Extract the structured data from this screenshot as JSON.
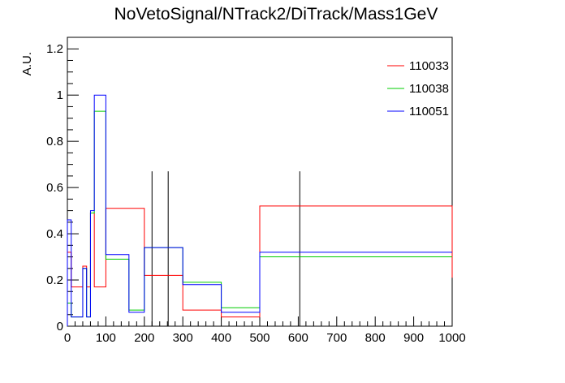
{
  "chart_data": {
    "type": "line",
    "title": "NoVetoSignal/NTrack2/DiTrack/Mass1GeV",
    "xlabel": "",
    "ylabel": "A.U.",
    "xlim": [
      0,
      1000
    ],
    "ylim": [
      0,
      1.25
    ],
    "xticks": [
      0,
      100,
      200,
      300,
      400,
      500,
      600,
      700,
      800,
      900,
      1000
    ],
    "yticks": [
      0,
      0.2,
      0.4,
      0.6,
      0.8,
      1,
      1.2
    ],
    "xtick_labels": [
      "0",
      "100",
      "200",
      "300",
      "400",
      "500",
      "600",
      "700",
      "800",
      "900",
      "1000"
    ],
    "ytick_labels": [
      "0",
      "0.2",
      "0.4",
      "0.6",
      "0.8",
      "1",
      "1.2"
    ],
    "grid": false,
    "legend_position": "top-right",
    "series": [
      {
        "name": "110033",
        "color": "#ff0000",
        "edges": [
          0,
          10,
          20,
          30,
          40,
          50,
          60,
          70,
          80,
          100,
          200,
          300,
          400,
          500,
          1000
        ],
        "values": [
          0.32,
          0.17,
          0.17,
          0.17,
          0.26,
          0.17,
          0.49,
          0.17,
          0.17,
          0.51,
          0.22,
          0.07,
          0.04,
          0.52,
          0.21
        ]
      },
      {
        "name": "110038",
        "color": "#00cc00",
        "edges": [
          0,
          10,
          20,
          30,
          40,
          50,
          60,
          70,
          80,
          100,
          160,
          200,
          300,
          400,
          500,
          1000
        ],
        "values": [
          0.1,
          0.04,
          0.04,
          0.04,
          0.25,
          0.04,
          0.49,
          0.93,
          0.93,
          0.29,
          0.07,
          0.34,
          0.19,
          0.08,
          0.3,
          0.3
        ]
      },
      {
        "name": "110051",
        "color": "#0000ff",
        "edges": [
          0,
          10,
          20,
          30,
          40,
          50,
          60,
          70,
          80,
          100,
          160,
          200,
          300,
          400,
          500,
          1000
        ],
        "values": [
          0.46,
          0.04,
          0.04,
          0.04,
          0.25,
          0.04,
          0.5,
          1.0,
          1.0,
          0.31,
          0.06,
          0.34,
          0.18,
          0.06,
          0.32,
          0.32
        ]
      }
    ],
    "reference_lines": [
      {
        "x": 220,
        "y_top": 0.67
      },
      {
        "x": 262,
        "y_top": 0.67
      },
      {
        "x": 604,
        "y_top": 0.67
      }
    ]
  }
}
